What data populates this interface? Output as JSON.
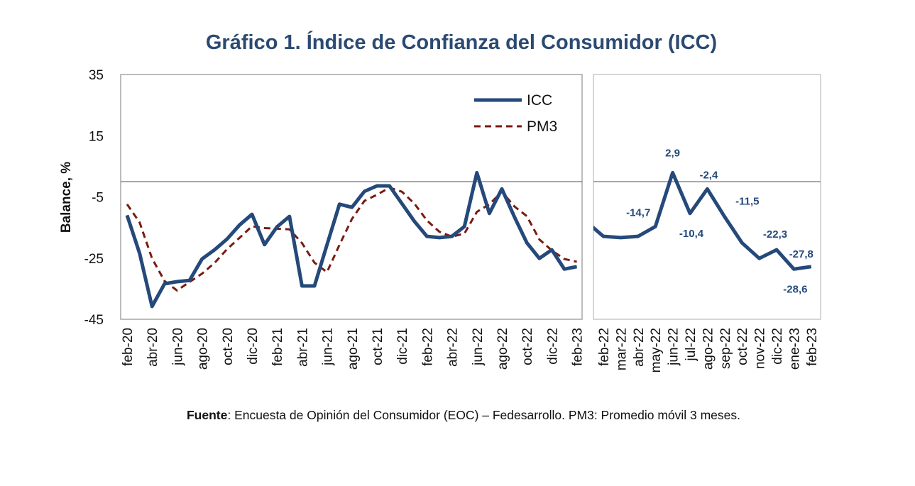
{
  "title": "Gráfico 1. Índice de Confianza del Consumidor (ICC)",
  "footer": {
    "bold": "Fuente",
    "text": ": Encuesta de Opinión del Consumidor (EOC) – Fedesarrollo. PM3: Promedio móvil 3 meses."
  },
  "colors": {
    "icc": "#24497a",
    "pm3": "#7b1a10",
    "title": "#2b4a72",
    "axis": "#a6a6a6"
  },
  "chart_data": [
    {
      "type": "line",
      "title": "Gráfico 1. Índice de Confianza del Consumidor (ICC)",
      "ylabel": "Balance, %",
      "ylim": [
        -45,
        35
      ],
      "yticks": [
        "35",
        "15",
        "-5",
        "-25",
        "-45"
      ],
      "legend": {
        "placement": "top-right",
        "entries": [
          "ICC",
          "PM3"
        ]
      },
      "x": [
        "feb-20",
        "mar-20",
        "abr-20",
        "may-20",
        "jun-20",
        "jul-20",
        "ago-20",
        "sep-20",
        "oct-20",
        "nov-20",
        "dic-20",
        "ene-21",
        "feb-21",
        "mar-21",
        "abr-21",
        "may-21",
        "jun-21",
        "jul-21",
        "ago-21",
        "sep-21",
        "oct-21",
        "nov-21",
        "dic-21",
        "ene-22",
        "feb-22",
        "mar-22",
        "abr-22",
        "may-22",
        "jun-22",
        "jul-22",
        "ago-22",
        "sep-22",
        "oct-22",
        "nov-22",
        "dic-22",
        "ene-23",
        "feb-23"
      ],
      "xtick_labels": [
        "feb-20",
        "abr-20",
        "jun-20",
        "ago-20",
        "oct-20",
        "dic-20",
        "feb-21",
        "abr-21",
        "jun-21",
        "ago-21",
        "oct-21",
        "dic-21",
        "feb-22",
        "abr-22",
        "jun-22",
        "ago-22",
        "oct-22",
        "dic-22",
        "feb-23"
      ],
      "series": [
        {
          "name": "ICC",
          "style": "solid",
          "values": [
            -11.0,
            -23.4,
            -40.8,
            -33.4,
            -32.7,
            -32.3,
            -25.3,
            -22.3,
            -18.8,
            -14.2,
            -10.7,
            -20.6,
            -14.8,
            -11.4,
            -34.1,
            -34.1,
            -20.7,
            -7.4,
            -8.4,
            -3.2,
            -1.4,
            -1.4,
            -7.2,
            -13.0,
            -17.9,
            -18.3,
            -17.9,
            -14.7,
            2.9,
            -10.4,
            -2.4,
            -11.5,
            -20.0,
            -25.1,
            -22.3,
            -28.6,
            -27.8
          ]
        },
        {
          "name": "PM3",
          "style": "dashed",
          "values": [
            -7.4,
            -13.3,
            -25.1,
            -32.5,
            -35.6,
            -32.8,
            -30.1,
            -26.6,
            -22.1,
            -18.4,
            -14.6,
            -15.2,
            -15.4,
            -15.6,
            -20.1,
            -26.5,
            -29.6,
            -20.7,
            -12.2,
            -6.3,
            -4.3,
            -2.0,
            -3.3,
            -7.2,
            -12.7,
            -16.4,
            -18.0,
            -17.0,
            -9.9,
            -7.4,
            -3.3,
            -8.1,
            -11.3,
            -18.9,
            -22.5,
            -25.3,
            -26.2
          ]
        }
      ],
      "reference_line": 0
    },
    {
      "type": "line",
      "ylim": [
        -45,
        35
      ],
      "x": [
        "feb-22",
        "mar-22",
        "abr-22",
        "may-22",
        "jun-22",
        "jul-22",
        "ago-22",
        "sep-22",
        "oct-22",
        "nov-22",
        "dic-22",
        "ene-23",
        "feb-23"
      ],
      "series": [
        {
          "name": "ICC",
          "values": [
            -17.9,
            -18.3,
            -17.9,
            -14.7,
            2.9,
            -10.4,
            -2.4,
            -11.5,
            -20.0,
            -25.1,
            -22.3,
            -28.6,
            -27.8
          ]
        }
      ],
      "data_labels": [
        {
          "x": "may-22",
          "text": "-14,7"
        },
        {
          "x": "jun-22",
          "text": "2,9"
        },
        {
          "x": "jul-22",
          "text": "-10,4"
        },
        {
          "x": "ago-22",
          "text": "-2,4"
        },
        {
          "x": "sep-22",
          "text": "-11,5"
        },
        {
          "x": "dic-22",
          "text": "-22,3"
        },
        {
          "x": "ene-23",
          "text": "-28,6"
        },
        {
          "x": "feb-23",
          "text": "-27,8"
        }
      ],
      "reference_line": 0
    }
  ]
}
